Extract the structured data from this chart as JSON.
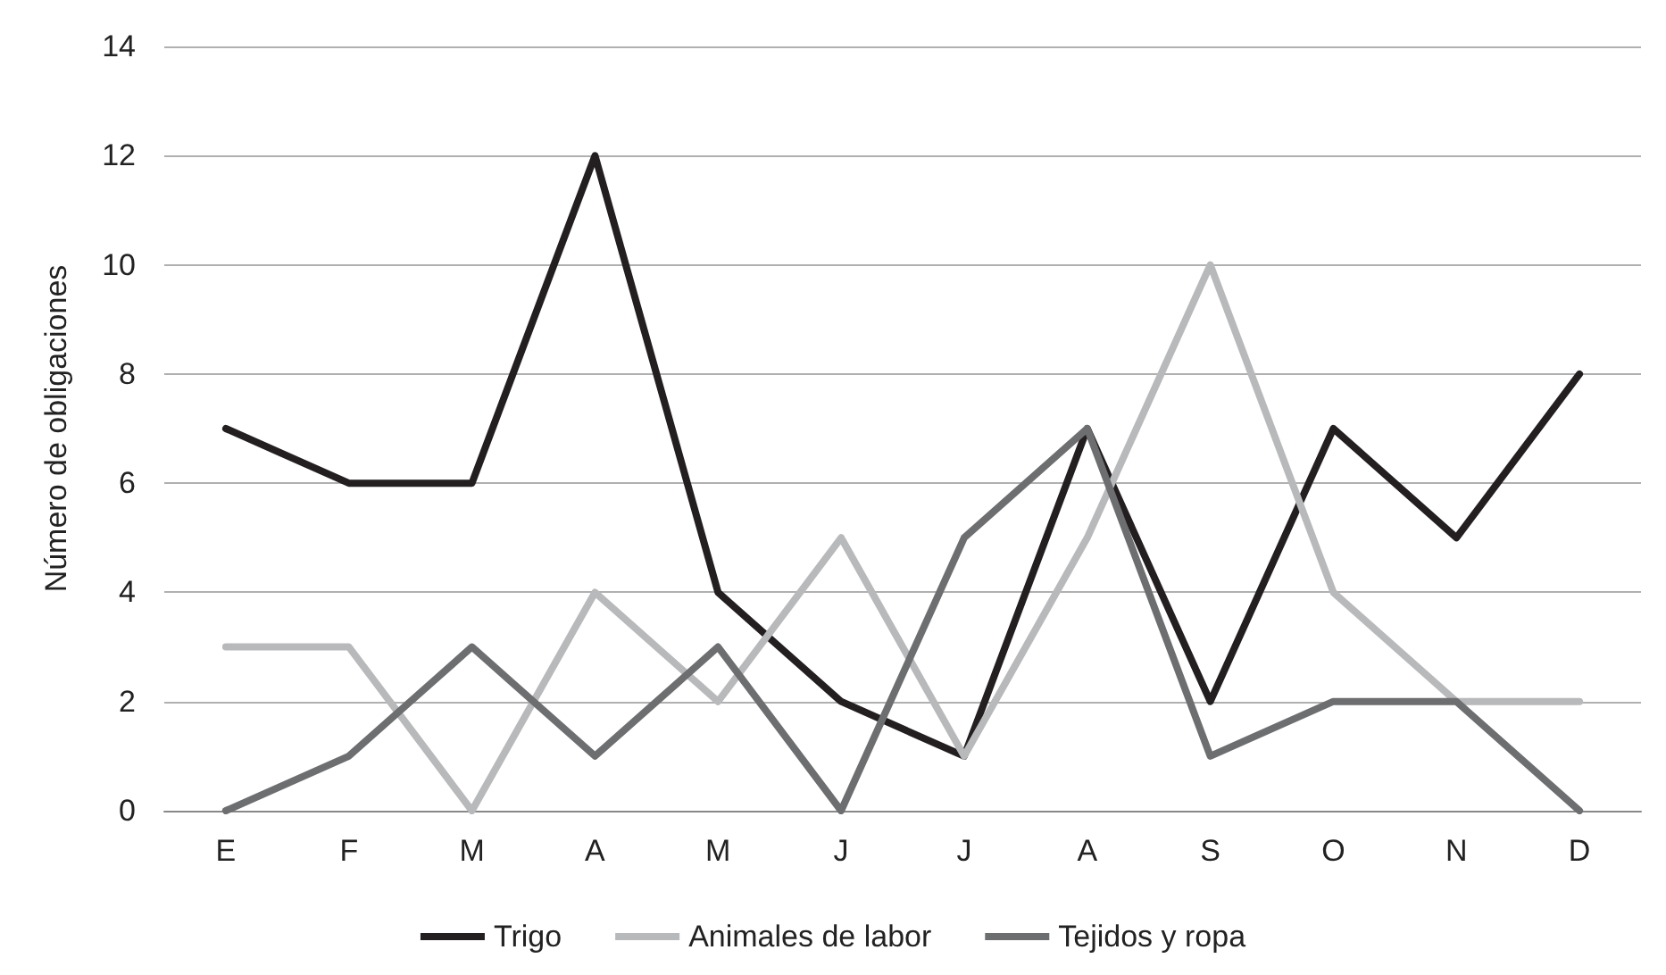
{
  "chart_data": {
    "type": "line",
    "ylabel": "Número de obligaciones",
    "categories": [
      "E",
      "F",
      "M",
      "A",
      "M",
      "J",
      "J",
      "A",
      "S",
      "O",
      "N",
      "D"
    ],
    "series": [
      {
        "name": "Trigo",
        "color": "#231f20",
        "values": [
          7,
          6,
          6,
          12,
          4,
          2,
          1,
          7,
          2,
          7,
          5,
          8
        ]
      },
      {
        "name": "Animales de labor",
        "color": "#b8b9bb",
        "values": [
          3,
          3,
          0,
          4,
          2,
          5,
          1,
          5,
          10,
          4,
          2,
          2
        ]
      },
      {
        "name": "Tejidos y ropa",
        "color": "#6d6e70",
        "values": [
          0,
          1,
          3,
          1,
          3,
          0,
          5,
          7,
          1,
          2,
          2,
          0
        ]
      }
    ],
    "ylim": [
      0,
      14
    ],
    "yticks": [
      0,
      2,
      4,
      6,
      8,
      10,
      12,
      14
    ],
    "grid": "y",
    "legend": "bottom",
    "marker": "none",
    "line_style": "solid"
  }
}
